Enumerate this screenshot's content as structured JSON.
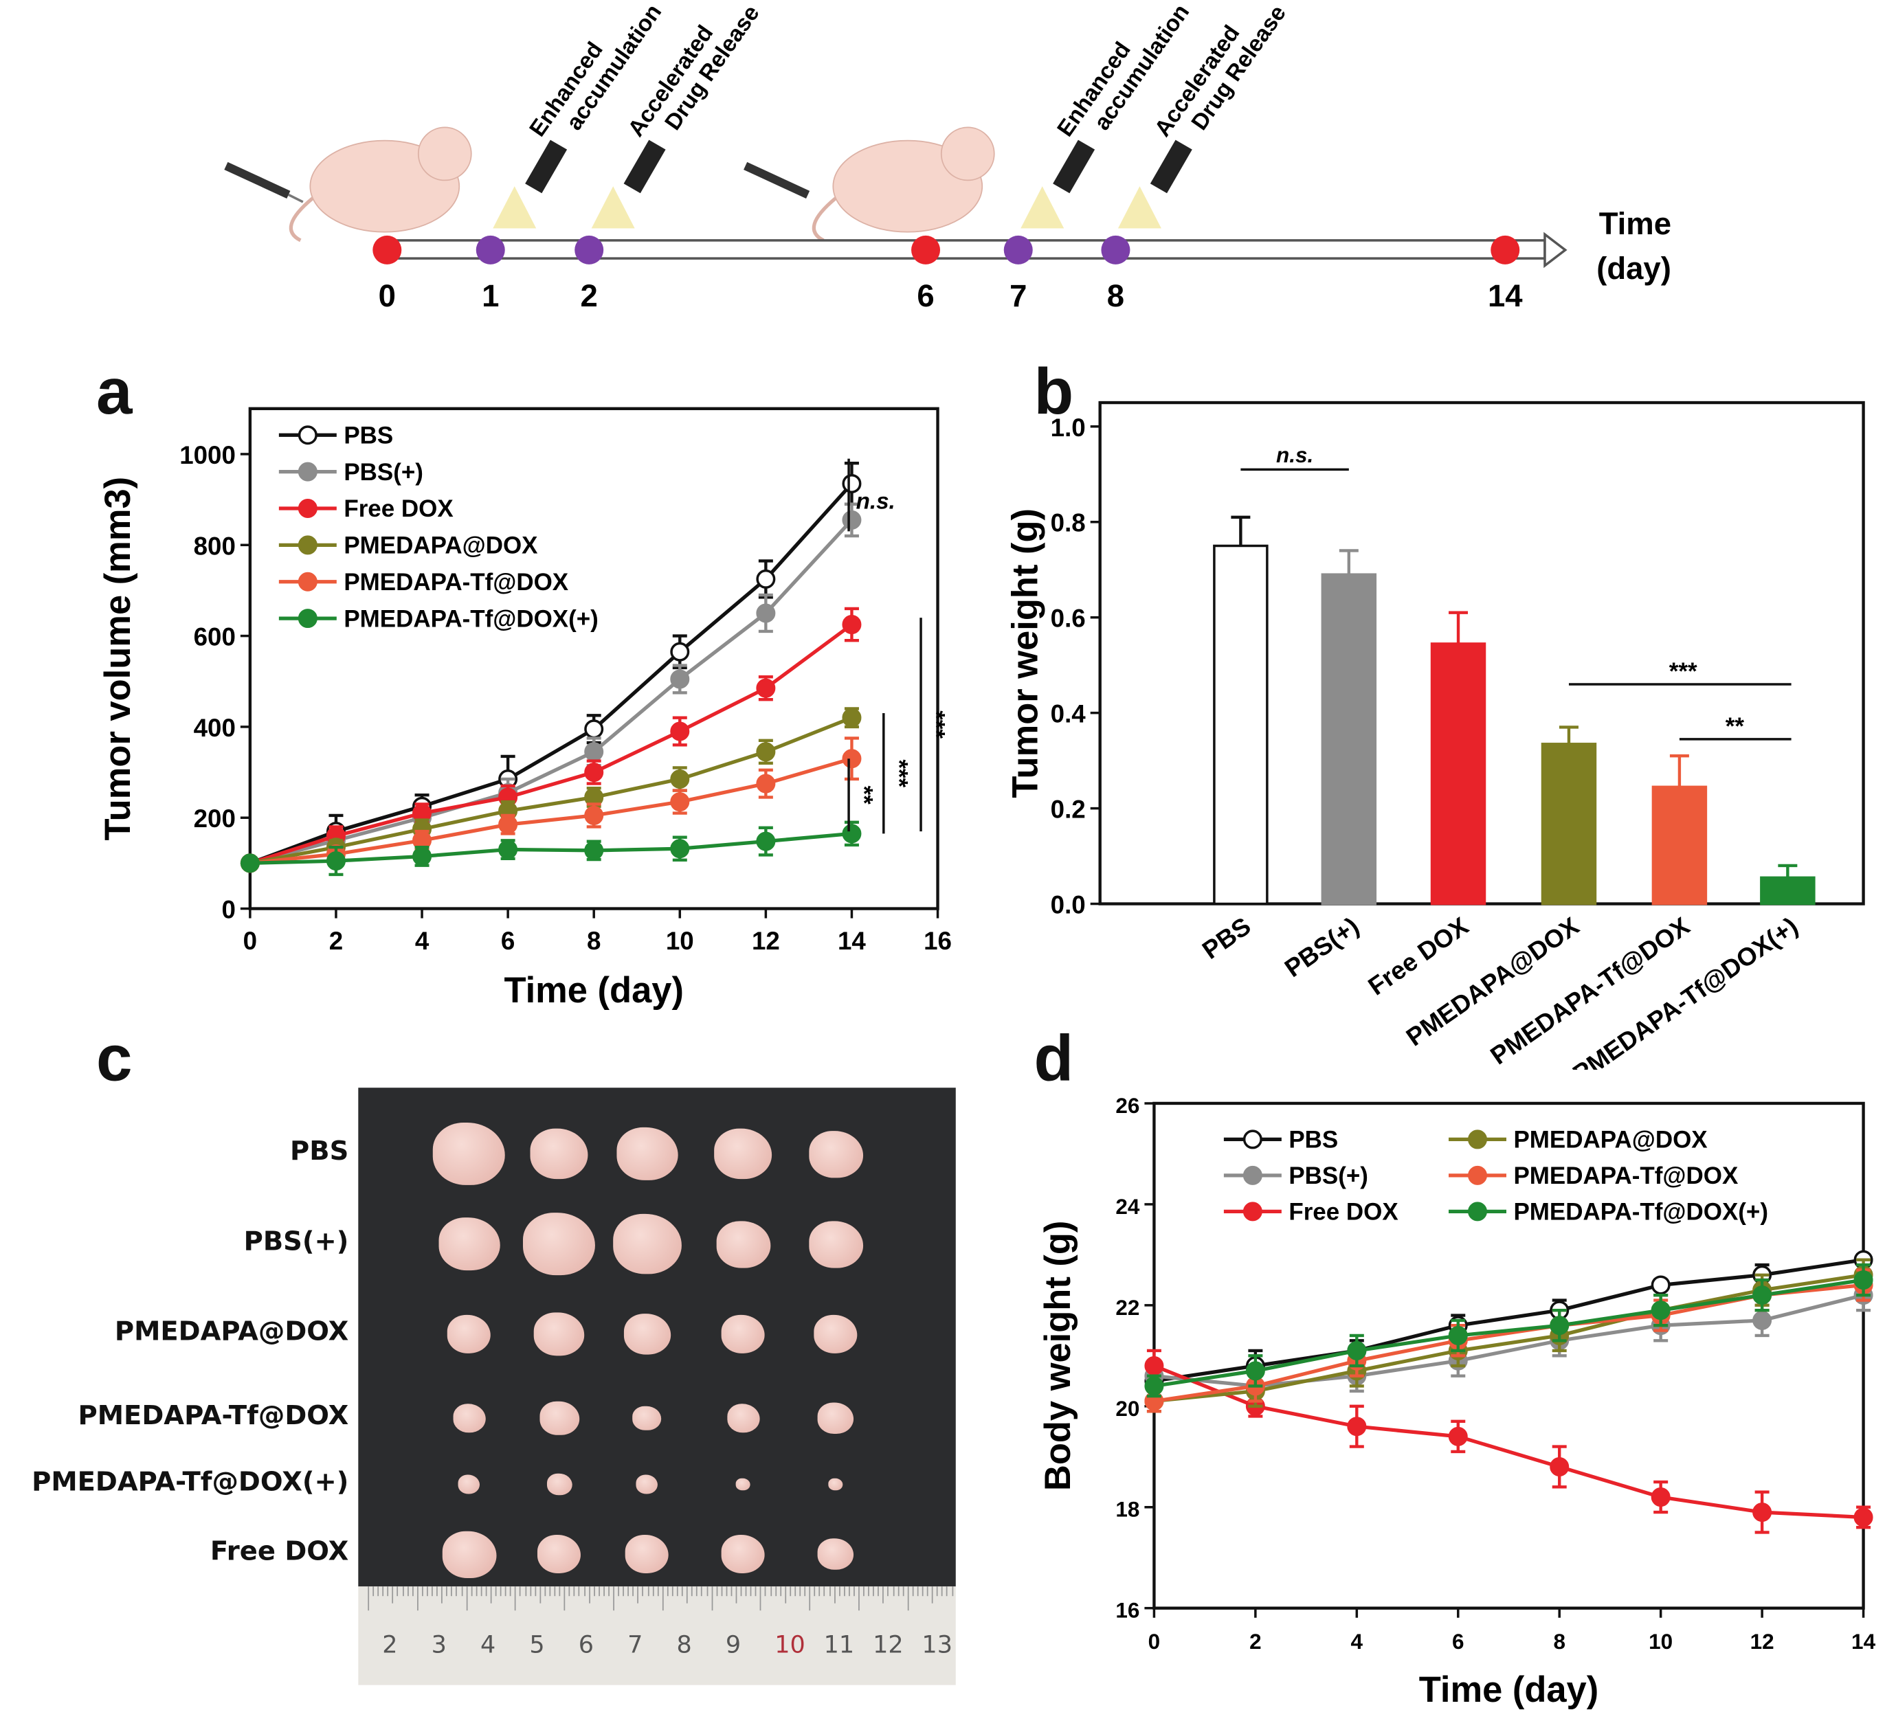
{
  "timeline": {
    "title_line1": "Time",
    "title_line2": "(day)",
    "points": [
      {
        "day": "0",
        "color": "#e8232a"
      },
      {
        "day": "1",
        "color": "#7b3fa8"
      },
      {
        "day": "2",
        "color": "#7b3fa8"
      },
      {
        "day": "6",
        "color": "#e8232a"
      },
      {
        "day": "7",
        "color": "#7b3fa8"
      },
      {
        "day": "8",
        "color": "#7b3fa8"
      },
      {
        "day": "14",
        "color": "#e8232a"
      }
    ],
    "annotations": [
      {
        "line1": "Enhanced",
        "line2": "accumulation"
      },
      {
        "line1": "Accelerated",
        "line2": "Drug Release"
      },
      {
        "line1": "Enhanced",
        "line2": "accumulation"
      },
      {
        "line1": "Accelerated",
        "line2": "Drug Release"
      }
    ]
  },
  "panels": {
    "a": "a",
    "b": "b",
    "c": "c",
    "d": "d"
  },
  "colors": {
    "PBS": "#111111",
    "PBS(+)": "#8c8c8c",
    "Free DOX": "#e8232a",
    "PMEDAPA@DOX": "#7e7e22",
    "PMEDAPA-Tf@DOX": "#ec5a3a",
    "PMEDAPA-Tf@DOX(+)": "#1f8a32"
  },
  "chart_data": [
    {
      "id": "a",
      "type": "line",
      "xlabel": "Time (day)",
      "ylabel": "Tumor volume (mm3)",
      "xlim": [
        0,
        16
      ],
      "ylim": [
        0,
        1100
      ],
      "xticks": [
        0,
        2,
        4,
        6,
        8,
        10,
        12,
        14,
        16
      ],
      "yticks": [
        0,
        200,
        400,
        600,
        800,
        1000
      ],
      "legend": "top-left",
      "x": [
        0,
        2,
        4,
        6,
        8,
        10,
        12,
        14
      ],
      "series": [
        {
          "name": "PBS",
          "values": [
            100,
            170,
            225,
            285,
            395,
            565,
            725,
            935
          ],
          "err": [
            10,
            35,
            25,
            50,
            30,
            35,
            40,
            45
          ]
        },
        {
          "name": "PBS(+)",
          "values": [
            100,
            150,
            200,
            255,
            345,
            505,
            650,
            855
          ],
          "err": [
            10,
            20,
            20,
            30,
            30,
            30,
            40,
            35
          ]
        },
        {
          "name": "Free DOX",
          "values": [
            100,
            160,
            210,
            245,
            300,
            390,
            485,
            625
          ],
          "err": [
            10,
            20,
            20,
            25,
            25,
            30,
            25,
            35
          ]
        },
        {
          "name": "PMEDAPA@DOX",
          "values": [
            100,
            135,
            175,
            215,
            245,
            285,
            345,
            420
          ],
          "err": [
            10,
            15,
            20,
            20,
            20,
            25,
            25,
            20
          ]
        },
        {
          "name": "PMEDAPA-Tf@DOX",
          "values": [
            100,
            120,
            150,
            185,
            205,
            235,
            275,
            330
          ],
          "err": [
            10,
            15,
            20,
            20,
            25,
            25,
            30,
            45
          ]
        },
        {
          "name": "PMEDAPA-Tf@DOX(+)",
          "values": [
            100,
            105,
            115,
            130,
            128,
            132,
            148,
            165
          ],
          "err": [
            10,
            30,
            20,
            20,
            20,
            25,
            30,
            25
          ]
        }
      ],
      "annotations": [
        "n.s.",
        "**",
        "***",
        "***"
      ]
    },
    {
      "id": "b",
      "type": "bar",
      "xlabel": "",
      "ylabel": "Tumor weight (g)",
      "ylim": [
        0,
        1.0
      ],
      "yticks": [
        "0.0",
        "0.2",
        "0.4",
        "0.6",
        "0.8",
        "1.0"
      ],
      "categories": [
        "PBS",
        "PBS(+)",
        "Free DOX",
        "PMEDAPA@DOX",
        "PMEDAPA-Tf@DOX",
        "PMEDAPA-Tf@DOX(+)"
      ],
      "values": [
        0.75,
        0.69,
        0.545,
        0.335,
        0.245,
        0.055
      ],
      "err": [
        0.06,
        0.05,
        0.065,
        0.035,
        0.065,
        0.025
      ],
      "annotations": [
        "n.s.",
        "***",
        "**"
      ]
    },
    {
      "id": "d",
      "type": "line",
      "xlabel": "Time (day)",
      "ylabel": "Body weight (g)",
      "xlim": [
        0,
        14
      ],
      "ylim": [
        16,
        26
      ],
      "xticks": [
        0,
        2,
        4,
        6,
        8,
        10,
        12,
        14
      ],
      "yticks": [
        16,
        18,
        20,
        22,
        24,
        26
      ],
      "legend": "top",
      "x": [
        0,
        2,
        4,
        6,
        8,
        10,
        12,
        14
      ],
      "series": [
        {
          "name": "PBS",
          "values": [
            20.5,
            20.8,
            21.1,
            21.6,
            21.9,
            22.4,
            22.6,
            22.9
          ],
          "err": [
            0.2,
            0.3,
            0.2,
            0.2,
            0.2,
            0.1,
            0.2,
            0.1
          ]
        },
        {
          "name": "PBS(+)",
          "values": [
            20.6,
            20.4,
            20.6,
            20.9,
            21.3,
            21.6,
            21.7,
            22.2
          ],
          "err": [
            0.2,
            0.3,
            0.3,
            0.3,
            0.3,
            0.3,
            0.3,
            0.3
          ]
        },
        {
          "name": "Free DOX",
          "values": [
            20.8,
            20.0,
            19.6,
            19.4,
            18.8,
            18.2,
            17.9,
            17.8
          ],
          "err": [
            0.3,
            0.2,
            0.4,
            0.3,
            0.4,
            0.3,
            0.4,
            0.2
          ]
        },
        {
          "name": "PMEDAPA@DOX",
          "values": [
            20.1,
            20.3,
            20.7,
            21.1,
            21.4,
            21.9,
            22.3,
            22.6
          ],
          "err": [
            0.2,
            0.3,
            0.3,
            0.3,
            0.3,
            0.3,
            0.3,
            0.3
          ]
        },
        {
          "name": "PMEDAPA-Tf@DOX",
          "values": [
            20.1,
            20.4,
            20.9,
            21.3,
            21.6,
            21.8,
            22.2,
            22.4
          ],
          "err": [
            0.2,
            0.3,
            0.3,
            0.3,
            0.3,
            0.3,
            0.3,
            0.3
          ]
        },
        {
          "name": "PMEDAPA-Tf@DOX(+)",
          "values": [
            20.4,
            20.7,
            21.1,
            21.4,
            21.6,
            21.9,
            22.2,
            22.5
          ],
          "err": [
            0.2,
            0.3,
            0.3,
            0.3,
            0.3,
            0.3,
            0.3,
            0.3
          ]
        }
      ]
    }
  ],
  "photo": {
    "rows": [
      "PBS",
      "PBS(+)",
      "PMEDAPA@DOX",
      "PMEDAPA-Tf@DOX",
      "PMEDAPA-Tf@DOX(+)",
      "Free DOX"
    ],
    "tumor_sizes": [
      [
        1,
        0.8,
        0.85,
        0.8,
        0.75
      ],
      [
        0.85,
        1,
        0.95,
        0.75,
        0.75
      ],
      [
        0.6,
        0.7,
        0.65,
        0.6,
        0.6
      ],
      [
        0.45,
        0.55,
        0.4,
        0.45,
        0.5
      ],
      [
        0.3,
        0.35,
        0.3,
        0.2,
        0.2
      ],
      [
        0.75,
        0.6,
        0.6,
        0.6,
        0.5
      ]
    ],
    "ruler": [
      "2",
      "3",
      "4",
      "5",
      "6",
      "7",
      "8",
      "9",
      "10",
      "11",
      "12",
      "13"
    ]
  }
}
